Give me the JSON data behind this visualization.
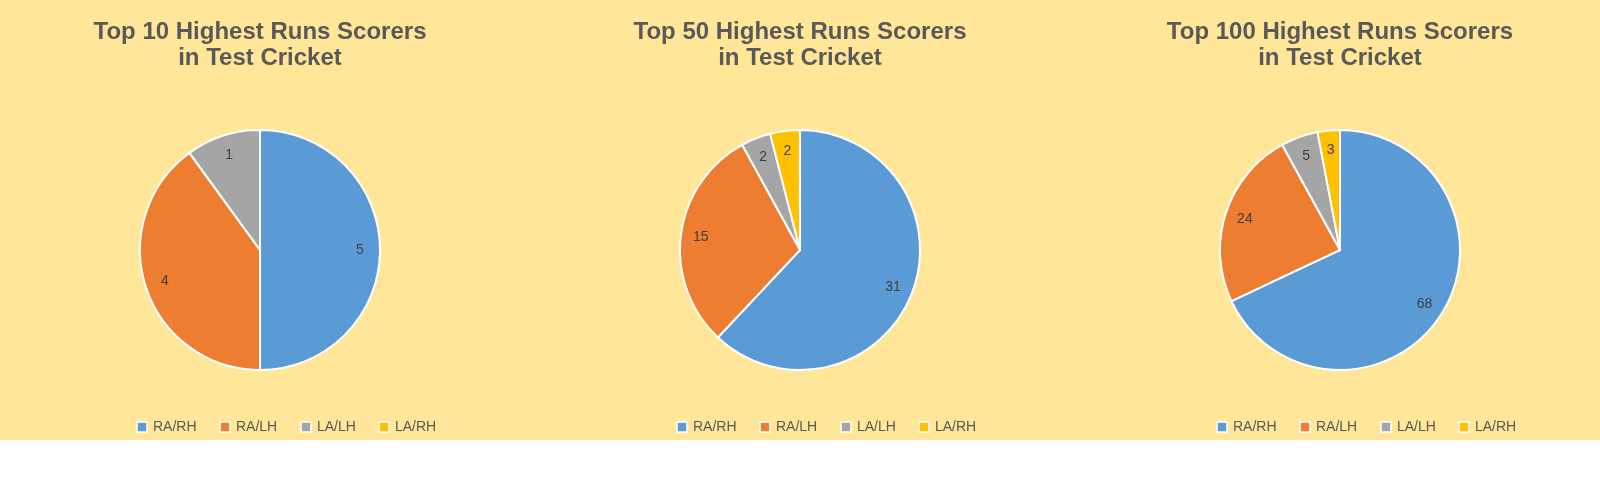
{
  "chart_data": [
    {
      "type": "pie",
      "title": "Top 10 Highest Runs Scorers\nin Test Cricket",
      "categories": [
        "RA/RH",
        "RA/LH",
        "LA/LH",
        "LA/RH"
      ],
      "values": [
        5,
        4,
        1,
        0
      ],
      "value_labels": [
        "5",
        "4",
        "1",
        null
      ],
      "colors": [
        "#5b9bd5",
        "#ed7d31",
        "#a5a5a5",
        "#ffc000"
      ],
      "legend": "bottom"
    },
    {
      "type": "pie",
      "title": "Top 50 Highest Runs Scorers\nin Test Cricket",
      "categories": [
        "RA/RH",
        "RA/LH",
        "LA/LH",
        "LA/RH"
      ],
      "values": [
        31,
        15,
        2,
        2
      ],
      "data_labels": true,
      "colors": [
        "#5b9bd5",
        "#ed7d31",
        "#a5a5a5",
        "#ffc000"
      ],
      "legend": "bottom"
    },
    {
      "type": "pie",
      "title": "Top 100 Highest Runs Scorers\nin Test Cricket",
      "categories": [
        "RA/RH",
        "RA/LH",
        "LA/LH",
        "LA/RH"
      ],
      "values": [
        68,
        24,
        5,
        3
      ],
      "data_labels": true,
      "colors": [
        "#5b9bd5",
        "#ed7d31",
        "#a5a5a5",
        "#ffc000"
      ],
      "legend": "bottom"
    }
  ]
}
